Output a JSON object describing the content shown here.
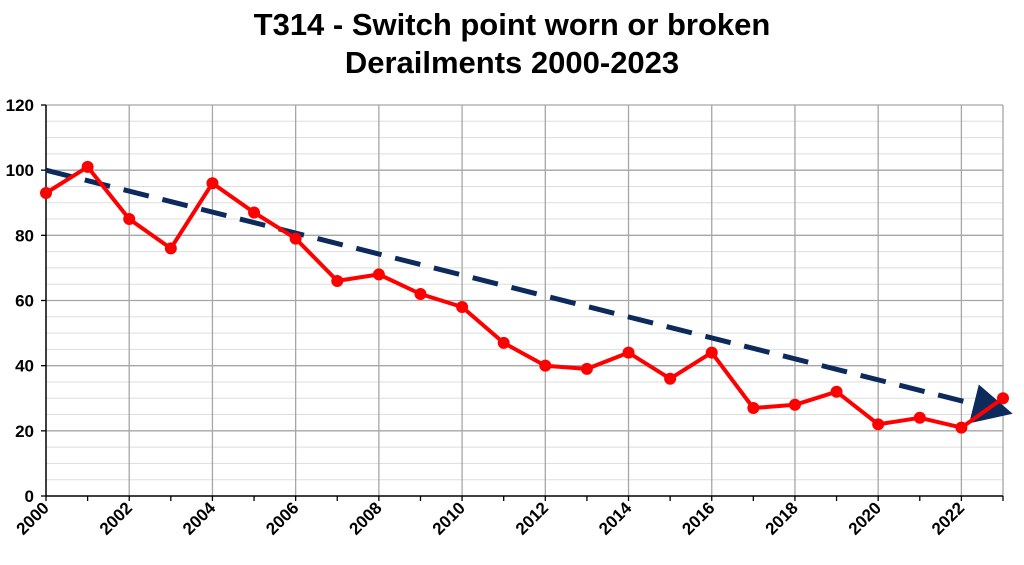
{
  "chart_data": {
    "type": "line",
    "title_line1": "T314 - Switch point worn or broken",
    "title_line2": "Derailments 2000-2023",
    "xlabel": "",
    "ylabel": "",
    "xlim": [
      2000,
      2023
    ],
    "ylim": [
      0,
      120
    ],
    "x_ticks": [
      "2000",
      "2002",
      "2004",
      "2006",
      "2008",
      "2010",
      "2012",
      "2014",
      "2016",
      "2018",
      "2020",
      "2022"
    ],
    "y_ticks": [
      "0",
      "20",
      "40",
      "60",
      "80",
      "100",
      "120"
    ],
    "grid": true,
    "series": [
      {
        "color": "#ff0000",
        "x": [
          2000,
          2001,
          2002,
          2003,
          2004,
          2005,
          2006,
          2007,
          2008,
          2009,
          2010,
          2011,
          2012,
          2013,
          2014,
          2015,
          2016,
          2017,
          2018,
          2019,
          2020,
          2021,
          2022,
          2023
        ],
        "values": [
          93,
          101,
          85,
          76,
          96,
          87,
          79,
          66,
          68,
          62,
          58,
          47,
          40,
          39,
          44,
          36,
          44,
          27,
          28,
          32,
          22,
          24,
          21,
          30
        ]
      }
    ],
    "trendline": {
      "color": "#0d2a5c",
      "style": "dashed-arrow",
      "x": [
        2000,
        2023
      ],
      "values": [
        100,
        26
      ]
    }
  }
}
